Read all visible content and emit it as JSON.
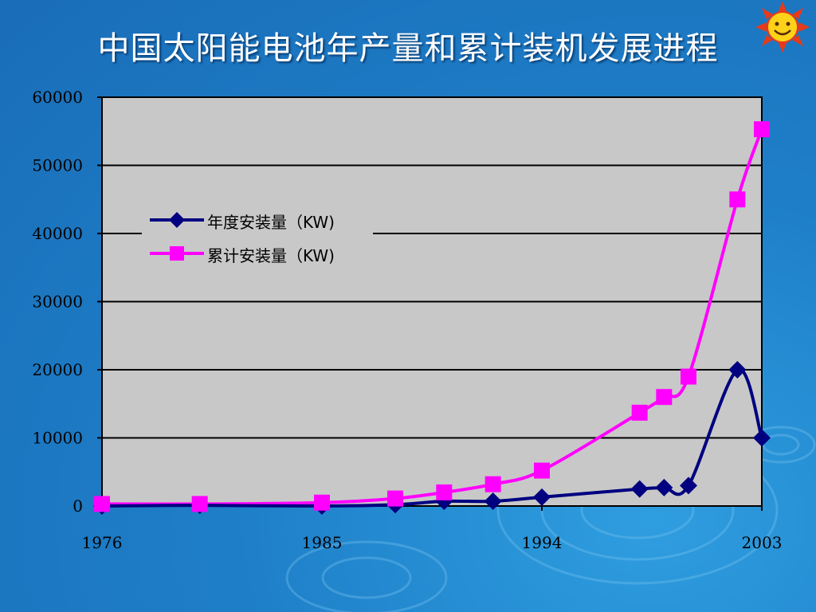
{
  "slide": {
    "title": "中国太阳能电池年产量和累计装机发展进程"
  },
  "colors": {
    "background": "#1e7fc8",
    "plot_area": "#c8c8c8",
    "series_annual": "#000080",
    "series_cumulative": "#ff00ff"
  },
  "chart_data": {
    "type": "line",
    "title": "",
    "xlabel": "",
    "ylabel": "",
    "xlim": [
      1976,
      2003
    ],
    "ylim": [
      0,
      60000
    ],
    "x_ticks": [
      "1976",
      "1985",
      "1994",
      "2003"
    ],
    "y_ticks": [
      "0",
      "10000",
      "20000",
      "30000",
      "40000",
      "50000",
      "60000"
    ],
    "grid": true,
    "legend_position": "upper-left",
    "series": [
      {
        "name": "年度安装量（KW)",
        "color": "#000080",
        "marker": "diamond",
        "x": [
          1976,
          1980,
          1985,
          1988,
          1990,
          1992,
          1994,
          1998,
          1999,
          2000,
          2002,
          2003
        ],
        "y": [
          0,
          100,
          0,
          200,
          700,
          700,
          1300,
          2500,
          2700,
          3000,
          20000,
          10000
        ]
      },
      {
        "name": "累计安装量（KW)",
        "color": "#ff00ff",
        "marker": "square",
        "x": [
          1976,
          1980,
          1985,
          1988,
          1990,
          1992,
          1994,
          1998,
          1999,
          2000,
          2002,
          2003
        ],
        "y": [
          300,
          300,
          500,
          1100,
          2000,
          3200,
          5200,
          13700,
          16000,
          19000,
          45000,
          55300
        ]
      }
    ]
  }
}
